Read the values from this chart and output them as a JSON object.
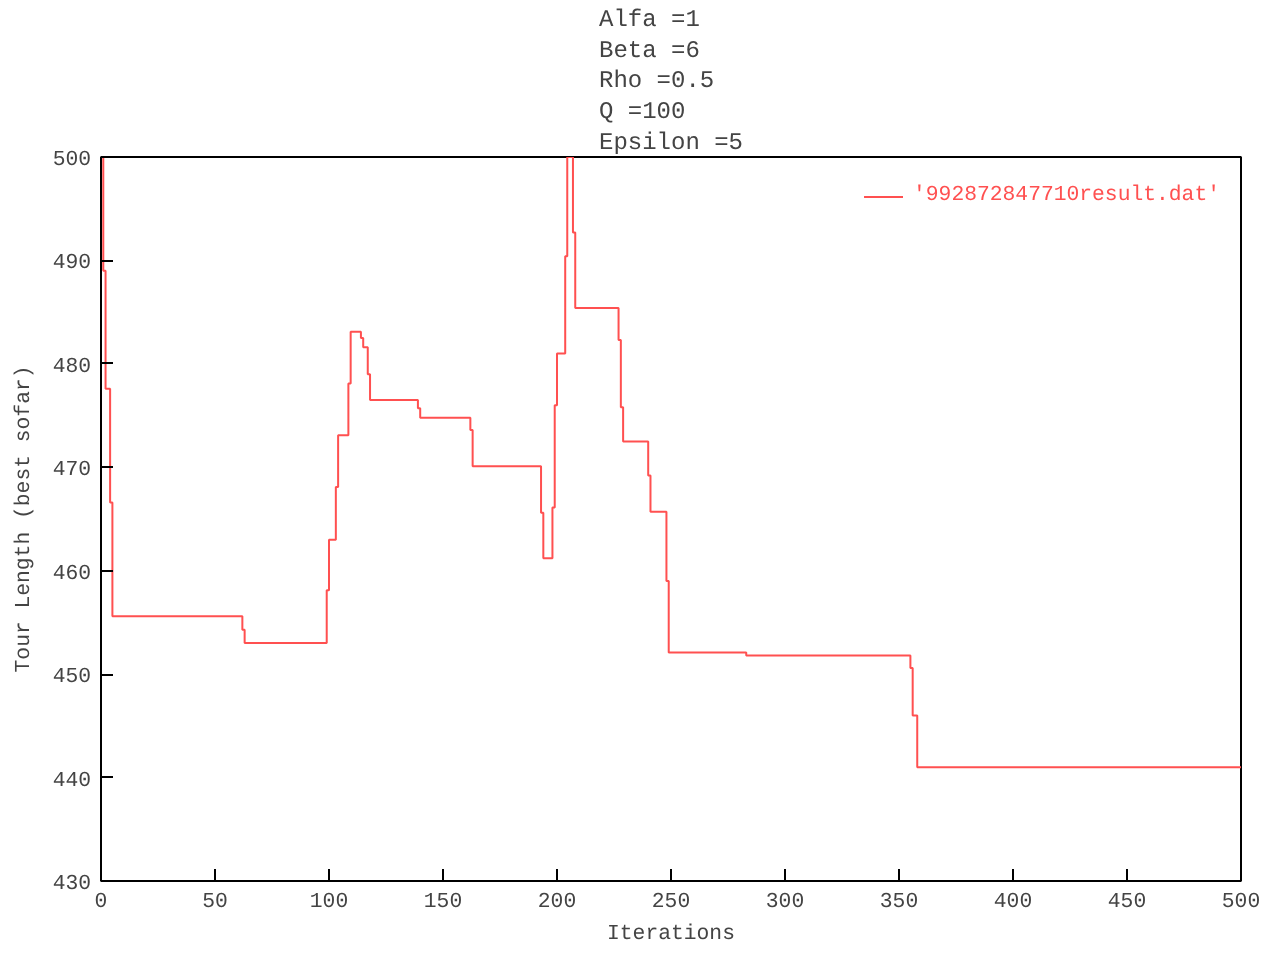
{
  "chart_data": {
    "type": "step",
    "title": "Alfa =1\nBeta =6\nRho =0.5\nQ =100\nEpsilon =5",
    "xlabel": "Iterations",
    "ylabel": "Tour Length (best sofar)",
    "xlim": [
      0,
      500
    ],
    "ylim": [
      430,
      500
    ],
    "xticks": [
      0,
      50,
      100,
      150,
      200,
      250,
      300,
      350,
      400,
      450,
      500
    ],
    "yticks": [
      430,
      440,
      450,
      460,
      470,
      480,
      490,
      500
    ],
    "grid": false,
    "legend": "top right",
    "line_style": "solid",
    "marker": "none",
    "series": [
      {
        "name": "'992872847710result.dat'",
        "color": "#ff5050",
        "x": [
          0,
          1,
          2,
          4,
          5,
          62,
          63,
          99,
          100,
          103,
          104,
          108.5,
          109.5,
          114,
          115,
          117,
          118,
          139,
          140,
          162,
          163,
          193,
          194,
          198,
          199,
          200,
          203.6,
          204.5,
          207,
          208,
          227,
          228,
          229,
          240,
          241,
          248,
          249,
          283,
          355,
          356,
          358,
          360,
          500
        ],
        "values": [
          500,
          489,
          477.6,
          466.6,
          455.6,
          454.3,
          453,
          458.1,
          463,
          468.1,
          473.1,
          478.1,
          483.1,
          482.5,
          481.6,
          479,
          476.5,
          475.7,
          474.8,
          473.6,
          470.1,
          465.6,
          461.2,
          466.1,
          476,
          481,
          490.4,
          500,
          492.7,
          485.4,
          482.3,
          475.8,
          472.5,
          469.2,
          465.7,
          459,
          452.1,
          451.8,
          450.6,
          446,
          441,
          441,
          441
        ]
      }
    ]
  }
}
